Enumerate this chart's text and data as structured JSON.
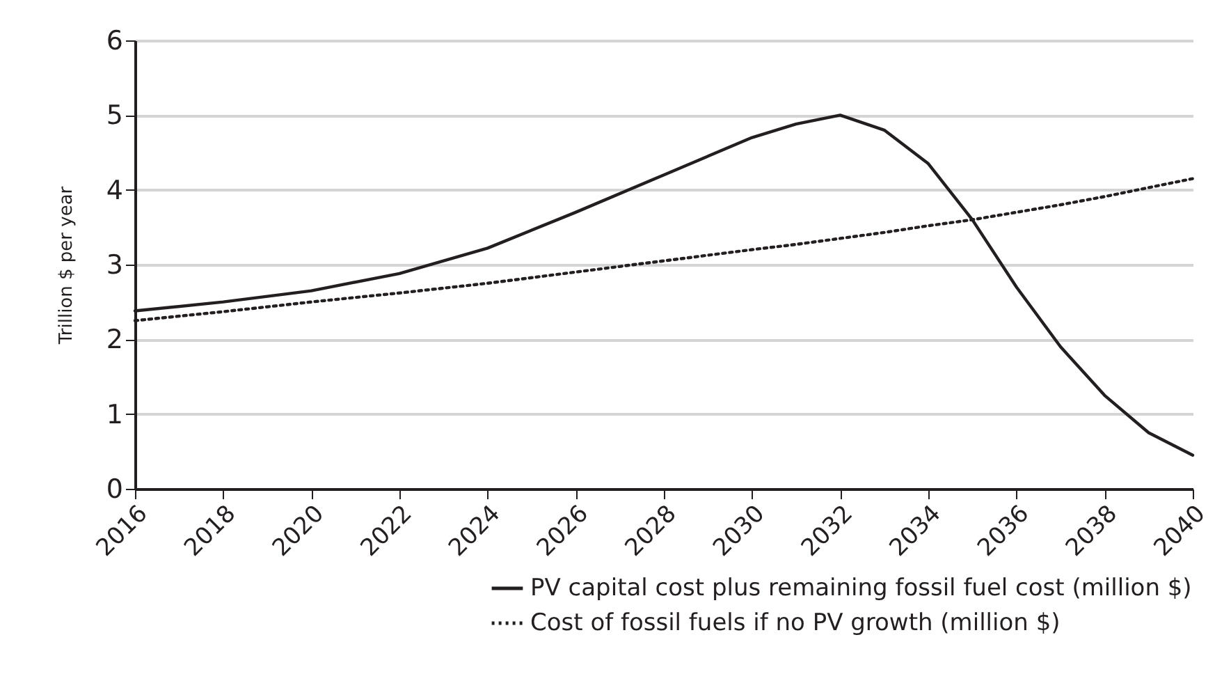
{
  "chart_data": {
    "type": "line",
    "ylabel": "Trillion $ per year",
    "x": [
      2016,
      2018,
      2020,
      2022,
      2024,
      2026,
      2028,
      2030,
      2031,
      2032,
      2033,
      2034,
      2035,
      2036,
      2037,
      2038,
      2039,
      2040
    ],
    "series": [
      {
        "name": "PV capital cost plus remaining fossil fuel cost (million $)",
        "color": "#231f20",
        "line_style": "solid",
        "values": [
          2.38,
          2.5,
          2.65,
          2.88,
          3.22,
          3.7,
          4.2,
          4.7,
          4.88,
          5.0,
          4.8,
          4.35,
          3.6,
          2.7,
          1.9,
          1.25,
          0.75,
          0.45
        ]
      },
      {
        "name": "Cost of fossil fuels if no PV growth (million $)",
        "color": "#231f20",
        "line_style": "dotted",
        "values": [
          2.25,
          2.37,
          2.5,
          2.62,
          2.75,
          2.9,
          3.05,
          3.2,
          3.27,
          3.35,
          3.43,
          3.52,
          3.6,
          3.7,
          3.8,
          3.91,
          4.03,
          4.15
        ]
      }
    ],
    "xlim": [
      2016,
      2040
    ],
    "xticks": [
      2016,
      2018,
      2020,
      2022,
      2024,
      2026,
      2028,
      2030,
      2032,
      2034,
      2036,
      2038,
      2040
    ],
    "ylim": [
      0,
      6
    ],
    "yticks": [
      0,
      1,
      2,
      3,
      4,
      5,
      6
    ],
    "grid": "y",
    "legend": "bottom",
    "marker": "none"
  }
}
